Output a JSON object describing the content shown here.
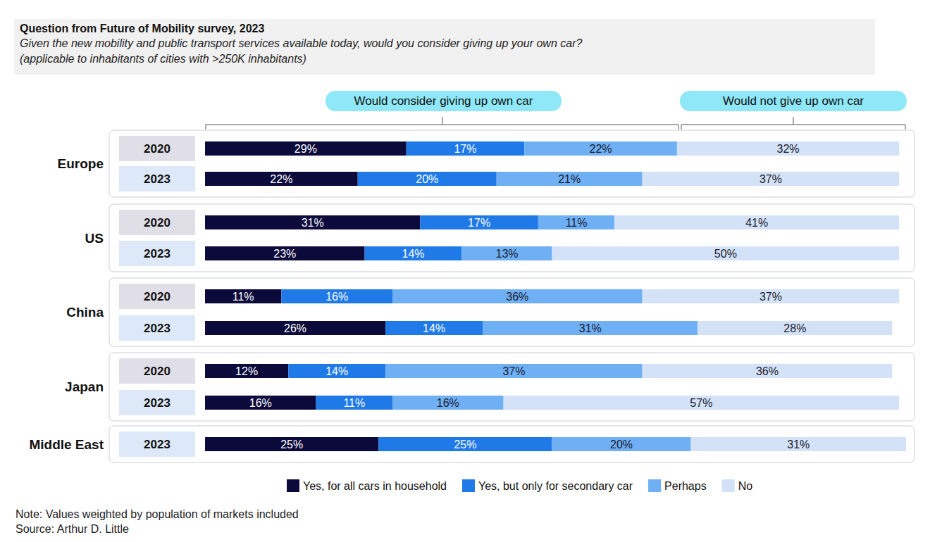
{
  "chart_data": {
    "type": "bar",
    "orientation": "horizontal",
    "stacked": true,
    "data_labels": true,
    "grid": false,
    "tick_labels": false,
    "legend": "bottom",
    "title": "Question from Future of Mobility survey, 2023",
    "subtitle": [
      "Given the new mobility and public transport services available today, would you consider giving up your own car?",
      "(applicable to inhabitants of cities with >250K inhabitants)"
    ],
    "group_headers": [
      "Would consider giving up own car",
      "Would not give up own car"
    ],
    "note": "Note: Values weighted by population of markets included",
    "source": "Source: Arthur D. Little",
    "regions": [
      "Europe",
      "Europe",
      "US",
      "US",
      "China",
      "China",
      "Japan",
      "Japan",
      "Middle East"
    ],
    "categories": [
      "2020",
      "2023",
      "2020",
      "2023",
      "2020",
      "2023",
      "2020",
      "2023",
      "2023"
    ],
    "xlim": [
      0,
      101
    ],
    "series": [
      {
        "name": "Yes, for all cars in household",
        "color": "#0b0a3b",
        "values": [
          29,
          22,
          31,
          23,
          11,
          26,
          12,
          16,
          25
        ],
        "value_labels": [
          "29%",
          "22%",
          "31%",
          "23%",
          "11%",
          "26%",
          "12%",
          "16%",
          "25%"
        ]
      },
      {
        "name": "Yes, but only for secondary car",
        "color": "#1f7ae8",
        "values": [
          17,
          20,
          17,
          14,
          16,
          14,
          14,
          11,
          25
        ],
        "value_labels": [
          "17%",
          "20%",
          "17%",
          "14%",
          "16%",
          "14%",
          "14%",
          "11%",
          "25%"
        ]
      },
      {
        "name": "Perhaps",
        "color": "#6fb0f5",
        "values": [
          22,
          21,
          11,
          13,
          36,
          31,
          37,
          16,
          20
        ],
        "value_labels": [
          "22%",
          "21%",
          "11%",
          "13%",
          "36%",
          "31%",
          "37%",
          "16%",
          "20%"
        ]
      },
      {
        "name": "No",
        "color": "#d3e2f7",
        "values": [
          32,
          37,
          41,
          50,
          37,
          28,
          36,
          57,
          31
        ],
        "value_labels": [
          "32%",
          "37%",
          "41%",
          "50%",
          "37%",
          "28%",
          "36%",
          "57%",
          "31%"
        ]
      }
    ]
  }
}
